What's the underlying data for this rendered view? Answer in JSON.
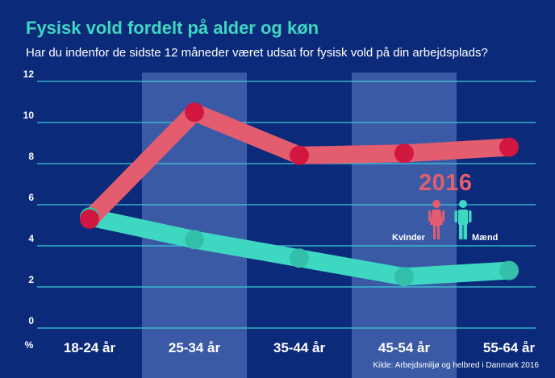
{
  "title": "Fysisk vold fordelt på alder og køn",
  "subtitle": "Har du indenfor de sidste 12 måneder været udsat for fysisk vold på din arbejdsplads?",
  "source": "Kilde: Arbejdsmiljø og helbred i Danmark 2016",
  "legend": {
    "year": "2016",
    "women_label": "Kvinder",
    "men_label": "Mænd",
    "women_icon": "woman-icon",
    "men_icon": "man-icon"
  },
  "colors": {
    "background": "#0b2a7a",
    "band": "#3a5aa6",
    "grid": "#3ec9d6",
    "women_line": "#e35d6f",
    "women_marker": "#d1163f",
    "men_line": "#3ed8c2",
    "men_marker": "#33bfaa",
    "title": "#3ed8c2"
  },
  "chart_data": {
    "type": "line",
    "title": "Fysisk vold fordelt på alder og køn",
    "subtitle": "Har du indenfor de sidste 12 måneder været udsat for fysisk vold på din arbejdsplads?",
    "xlabel": "",
    "ylabel": "%",
    "categories": [
      "18-24 år",
      "25-34 år",
      "35-44 år",
      "45-54 år",
      "55-64 år"
    ],
    "ylim": [
      0,
      12
    ],
    "yticks": [
      0,
      2,
      4,
      6,
      8,
      10,
      12
    ],
    "grid": true,
    "legend_position": "right",
    "series": [
      {
        "name": "Kvinder",
        "values": [
          5.3,
          10.5,
          8.4,
          8.5,
          8.8
        ]
      },
      {
        "name": "Mænd",
        "values": [
          5.4,
          4.3,
          3.4,
          2.5,
          2.8
        ]
      }
    ]
  }
}
